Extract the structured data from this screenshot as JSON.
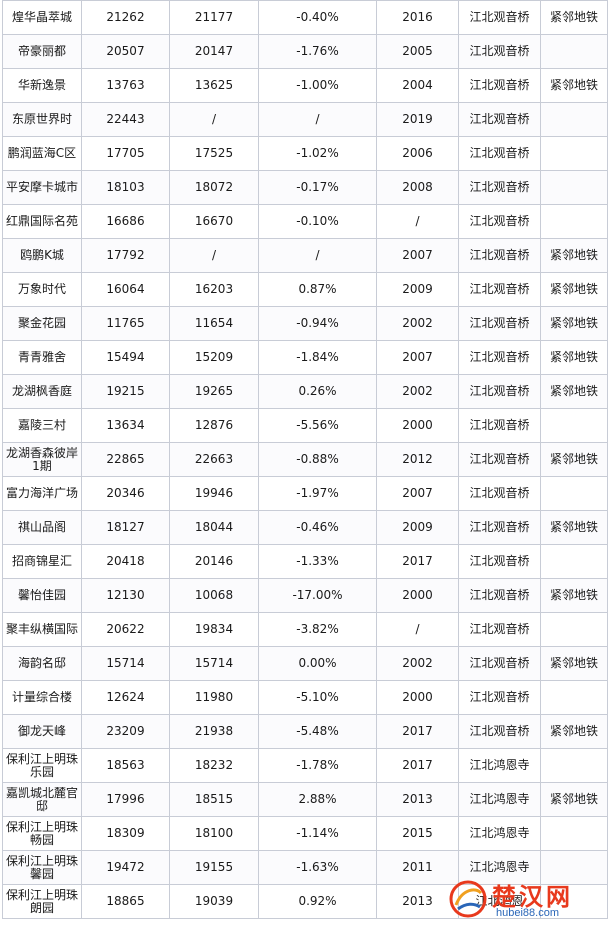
{
  "rows": [
    {
      "name": "煌华晶萃城",
      "price_a": "21262",
      "price_b": "21177",
      "change": "-0.40%",
      "year": "2016",
      "area": "江北观音桥",
      "tag": "紧邻地铁"
    },
    {
      "name": "帝豪丽都",
      "price_a": "20507",
      "price_b": "20147",
      "change": "-1.76%",
      "year": "2005",
      "area": "江北观音桥",
      "tag": ""
    },
    {
      "name": "华新逸景",
      "price_a": "13763",
      "price_b": "13625",
      "change": "-1.00%",
      "year": "2004",
      "area": "江北观音桥",
      "tag": "紧邻地铁"
    },
    {
      "name": "东原世界时",
      "price_a": "22443",
      "price_b": "/",
      "change": "/",
      "year": "2019",
      "area": "江北观音桥",
      "tag": ""
    },
    {
      "name": "鹏润蓝海C区",
      "price_a": "17705",
      "price_b": "17525",
      "change": "-1.02%",
      "year": "2006",
      "area": "江北观音桥",
      "tag": ""
    },
    {
      "name": "平安摩卡城市",
      "price_a": "18103",
      "price_b": "18072",
      "change": "-0.17%",
      "year": "2008",
      "area": "江北观音桥",
      "tag": ""
    },
    {
      "name": "红鼎国际名苑",
      "price_a": "16686",
      "price_b": "16670",
      "change": "-0.10%",
      "year": "/",
      "area": "江北观音桥",
      "tag": ""
    },
    {
      "name": "鸥鹏K城",
      "price_a": "17792",
      "price_b": "/",
      "change": "/",
      "year": "2007",
      "area": "江北观音桥",
      "tag": "紧邻地铁"
    },
    {
      "name": "万象时代",
      "price_a": "16064",
      "price_b": "16203",
      "change": "0.87%",
      "year": "2009",
      "area": "江北观音桥",
      "tag": "紧邻地铁"
    },
    {
      "name": "聚金花园",
      "price_a": "11765",
      "price_b": "11654",
      "change": "-0.94%",
      "year": "2002",
      "area": "江北观音桥",
      "tag": "紧邻地铁"
    },
    {
      "name": "青青雅舍",
      "price_a": "15494",
      "price_b": "15209",
      "change": "-1.84%",
      "year": "2007",
      "area": "江北观音桥",
      "tag": "紧邻地铁"
    },
    {
      "name": "龙湖枫香庭",
      "price_a": "19215",
      "price_b": "19265",
      "change": "0.26%",
      "year": "2002",
      "area": "江北观音桥",
      "tag": "紧邻地铁"
    },
    {
      "name": "嘉陵三村",
      "price_a": "13634",
      "price_b": "12876",
      "change": "-5.56%",
      "year": "2000",
      "area": "江北观音桥",
      "tag": ""
    },
    {
      "name": "龙湖香森彼岸1期",
      "price_a": "22865",
      "price_b": "22663",
      "change": "-0.88%",
      "year": "2012",
      "area": "江北观音桥",
      "tag": "紧邻地铁"
    },
    {
      "name": "富力海洋广场",
      "price_a": "20346",
      "price_b": "19946",
      "change": "-1.97%",
      "year": "2007",
      "area": "江北观音桥",
      "tag": ""
    },
    {
      "name": "祺山品阁",
      "price_a": "18127",
      "price_b": "18044",
      "change": "-0.46%",
      "year": "2009",
      "area": "江北观音桥",
      "tag": "紧邻地铁"
    },
    {
      "name": "招商锦星汇",
      "price_a": "20418",
      "price_b": "20146",
      "change": "-1.33%",
      "year": "2017",
      "area": "江北观音桥",
      "tag": ""
    },
    {
      "name": "馨怡佳园",
      "price_a": "12130",
      "price_b": "10068",
      "change": "-17.00%",
      "year": "2000",
      "area": "江北观音桥",
      "tag": "紧邻地铁"
    },
    {
      "name": "聚丰纵横国际",
      "price_a": "20622",
      "price_b": "19834",
      "change": "-3.82%",
      "year": "/",
      "area": "江北观音桥",
      "tag": ""
    },
    {
      "name": "海韵名邸",
      "price_a": "15714",
      "price_b": "15714",
      "change": "0.00%",
      "year": "2002",
      "area": "江北观音桥",
      "tag": "紧邻地铁"
    },
    {
      "name": "计量综合楼",
      "price_a": "12624",
      "price_b": "11980",
      "change": "-5.10%",
      "year": "2000",
      "area": "江北观音桥",
      "tag": ""
    },
    {
      "name": "御龙天峰",
      "price_a": "23209",
      "price_b": "21938",
      "change": "-5.48%",
      "year": "2017",
      "area": "江北观音桥",
      "tag": "紧邻地铁"
    },
    {
      "name": "保利江上明珠乐园",
      "price_a": "18563",
      "price_b": "18232",
      "change": "-1.78%",
      "year": "2017",
      "area": "江北鸿恩寺",
      "tag": ""
    },
    {
      "name": "嘉凯城北麓官邸",
      "price_a": "17996",
      "price_b": "18515",
      "change": "2.88%",
      "year": "2013",
      "area": "江北鸿恩寺",
      "tag": "紧邻地铁"
    },
    {
      "name": "保利江上明珠畅园",
      "price_a": "18309",
      "price_b": "18100",
      "change": "-1.14%",
      "year": "2015",
      "area": "江北鸿恩寺",
      "tag": ""
    },
    {
      "name": "保利江上明珠馨园",
      "price_a": "19472",
      "price_b": "19155",
      "change": "-1.63%",
      "year": "2011",
      "area": "江北鸿恩寺",
      "tag": ""
    },
    {
      "name": "保利江上明珠朗园",
      "price_a": "18865",
      "price_b": "19039",
      "change": "0.92%",
      "year": "2013",
      "area": "江北鸿恩",
      "tag": ""
    }
  ],
  "watermark": {
    "name": "楚汉网",
    "url": "hubei88.com"
  },
  "colors": {
    "border": "#c8ccd6",
    "text": "#1a1a1a",
    "watermark_red": "#e8391d",
    "watermark_blue": "#2a66b8"
  }
}
